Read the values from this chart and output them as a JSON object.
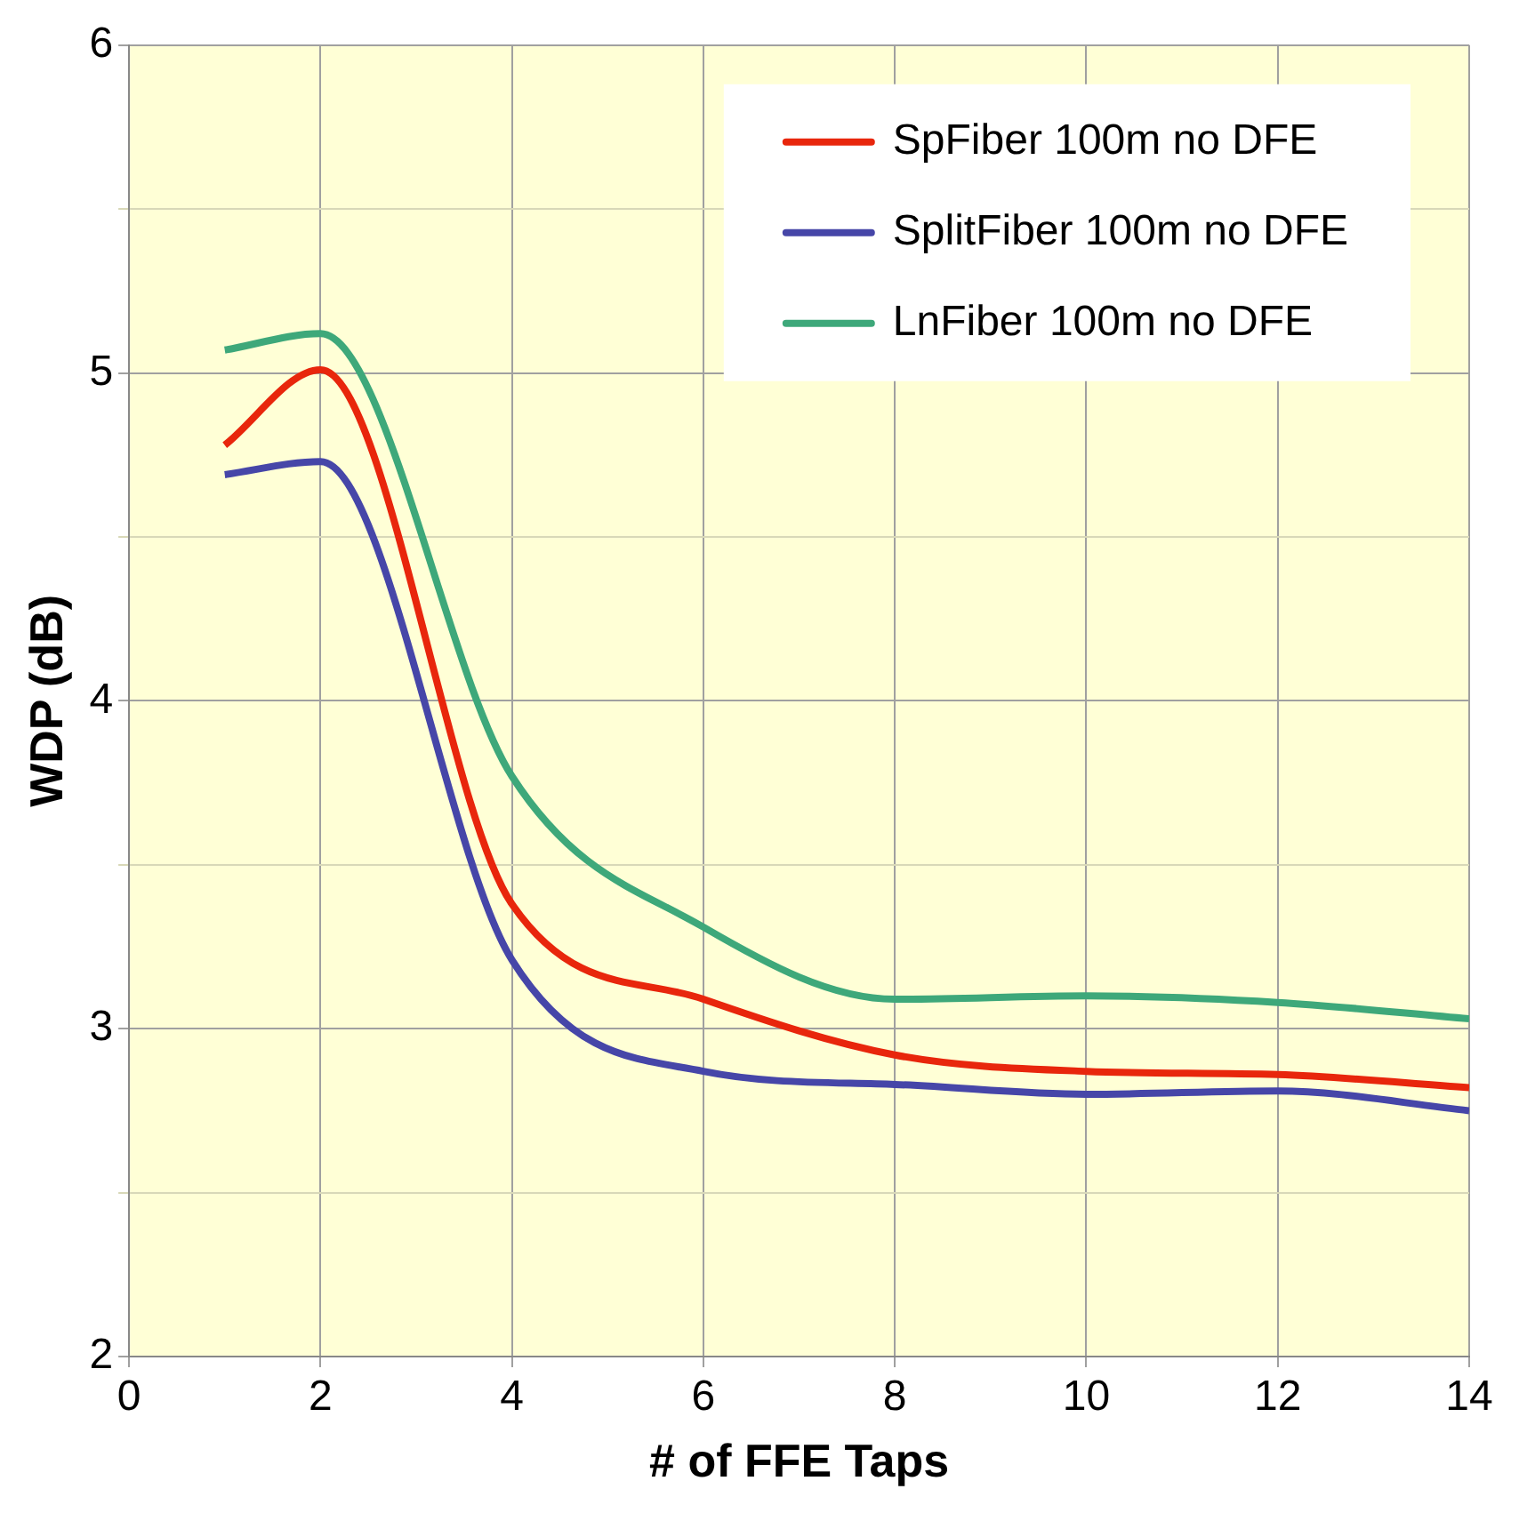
{
  "chart_data": {
    "type": "line",
    "xlabel": "# of FFE Taps",
    "ylabel": "WDP (dB)",
    "x": [
      1,
      2,
      4,
      6,
      8,
      10,
      12,
      14
    ],
    "series": [
      {
        "name": "SpFiber 100m no DFE",
        "color": "#e8260c",
        "values": [
          4.78,
          5.01,
          3.38,
          3.09,
          2.92,
          2.87,
          2.86,
          2.82
        ]
      },
      {
        "name": "SplitFiber 100m no DFE",
        "color": "#4646a8",
        "values": [
          4.69,
          4.73,
          3.21,
          2.87,
          2.83,
          2.8,
          2.81,
          2.75
        ]
      },
      {
        "name": "LnFiber 100m no DFE",
        "color": "#3ea87a",
        "values": [
          5.07,
          5.12,
          3.77,
          3.31,
          3.09,
          3.1,
          3.08,
          3.03
        ]
      }
    ],
    "xlim": [
      0,
      14
    ],
    "xticks": [
      0,
      2,
      4,
      6,
      8,
      10,
      12,
      14
    ],
    "ylim": [
      2,
      6
    ],
    "yticks": [
      2,
      {
        "value": 2.5,
        "label": null
      },
      3,
      {
        "value": 3.5,
        "label": null
      },
      4,
      {
        "value": 4.5,
        "label": null
      },
      5,
      {
        "value": 5.5,
        "label": null
      },
      6
    ],
    "grid": true,
    "legend": "top right",
    "marker": "none",
    "line_style": "solid"
  }
}
